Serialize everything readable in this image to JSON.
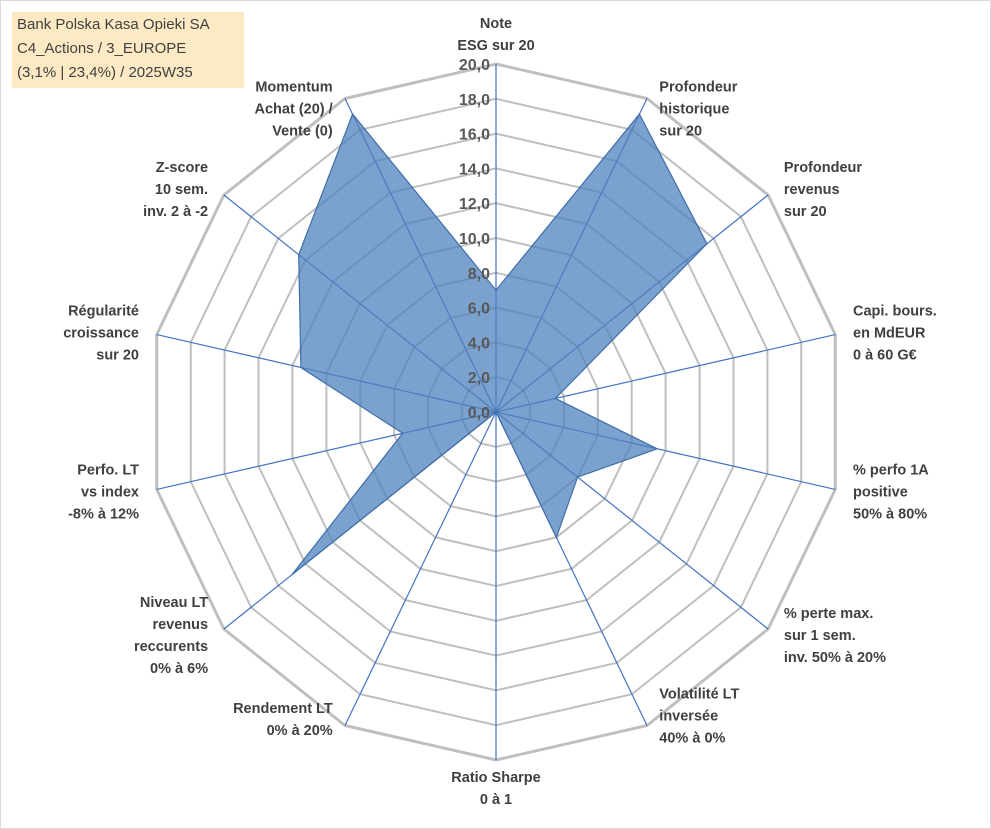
{
  "title": {
    "line1": "Bank Polska Kasa Opieki SA",
    "line2": "C4_Actions / 3_EUROPE",
    "line3": "(3,1% | 23,4%) / 2025W35"
  },
  "colors": {
    "fill": "#4f81bd",
    "ring": "#bfbfbf",
    "spoke": "#4472c4"
  },
  "chart_data": {
    "type": "radar",
    "rmin": 0,
    "rmax": 20,
    "ring_step": 2,
    "grid": true,
    "ticks": [
      "0,0",
      "2,0",
      "4,0",
      "6,0",
      "8,0",
      "10,0",
      "12,0",
      "14,0",
      "16,0",
      "18,0",
      "20,0"
    ],
    "axes": [
      {
        "label": [
          "Note",
          "ESG sur 20"
        ],
        "value": 7.0
      },
      {
        "label": [
          "Profondeur",
          "historique",
          "sur 20"
        ],
        "value": 19.0
      },
      {
        "label": [
          "Profondeur",
          "revenus",
          "sur 20"
        ],
        "value": 15.5
      },
      {
        "label": [
          "Capi. bours.",
          "en MdEUR",
          "0 à 60 G€"
        ],
        "value": 3.5
      },
      {
        "label": [
          "% perfo 1A",
          "positive",
          "50% à 80%"
        ],
        "value": 9.5
      },
      {
        "label": [
          "% perte max.",
          "sur 1 sem.",
          "inv. 50% à 20%"
        ],
        "value": 6.0
      },
      {
        "label": [
          "Volatilité LT",
          "inversée",
          "40% à 0%"
        ],
        "value": 8.0
      },
      {
        "label": [
          "Ratio Sharpe",
          "0 à 1"
        ],
        "value": 0.0
      },
      {
        "label": [
          "Rendement LT",
          "0% à 20%"
        ],
        "value": 0.0
      },
      {
        "label": [
          "Niveau LT",
          "revenus",
          "reccurents",
          "0% à 6%"
        ],
        "value": 15.0
      },
      {
        "label": [
          "Perfo. LT",
          "vs index",
          "-8% à 12%"
        ],
        "value": 5.5
      },
      {
        "label": [
          "Régularité",
          "croissance",
          "sur 20"
        ],
        "value": 11.5
      },
      {
        "label": [
          "Z-score",
          "10 sem.",
          "inv. 2 à -2"
        ],
        "value": 14.5
      },
      {
        "label": [
          "Momentum",
          "Achat (20) /",
          "Vente (0)"
        ],
        "value": 19.0
      }
    ]
  }
}
